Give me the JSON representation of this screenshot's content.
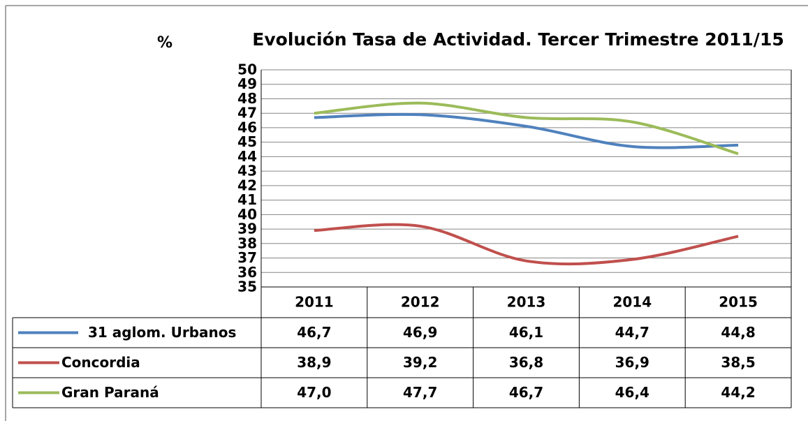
{
  "chart_data": {
    "type": "line",
    "title": "Evolución Tasa de Actividad. Tercer Trimestre 2011/15",
    "y_label": "%",
    "categories": [
      "2011",
      "2012",
      "2013",
      "2014",
      "2015"
    ],
    "series": [
      {
        "name": "31 aglom. Urbanos",
        "color": "#4f81bd",
        "values": [
          46.7,
          46.9,
          46.1,
          44.7,
          44.8
        ],
        "value_labels": [
          "46,7",
          "46,9",
          "46,1",
          "44,7",
          "44,8"
        ]
      },
      {
        "name": "Concordia",
        "color": "#c0504d",
        "values": [
          38.9,
          39.2,
          36.8,
          36.9,
          38.5
        ],
        "value_labels": [
          "38,9",
          "39,2",
          "36,8",
          "36,9",
          "38,5"
        ]
      },
      {
        "name": "Gran Paraná",
        "color": "#9bbb59",
        "values": [
          47.0,
          47.7,
          46.7,
          46.4,
          44.2
        ],
        "value_labels": [
          "47,0",
          "47,7",
          "46,7",
          "46,4",
          "44,2"
        ]
      }
    ],
    "ylim": [
      35,
      50
    ],
    "yticks": [
      35,
      36,
      37,
      38,
      39,
      40,
      41,
      42,
      43,
      44,
      45,
      46,
      47,
      48,
      49,
      50
    ],
    "grid": true,
    "smooth": true
  }
}
